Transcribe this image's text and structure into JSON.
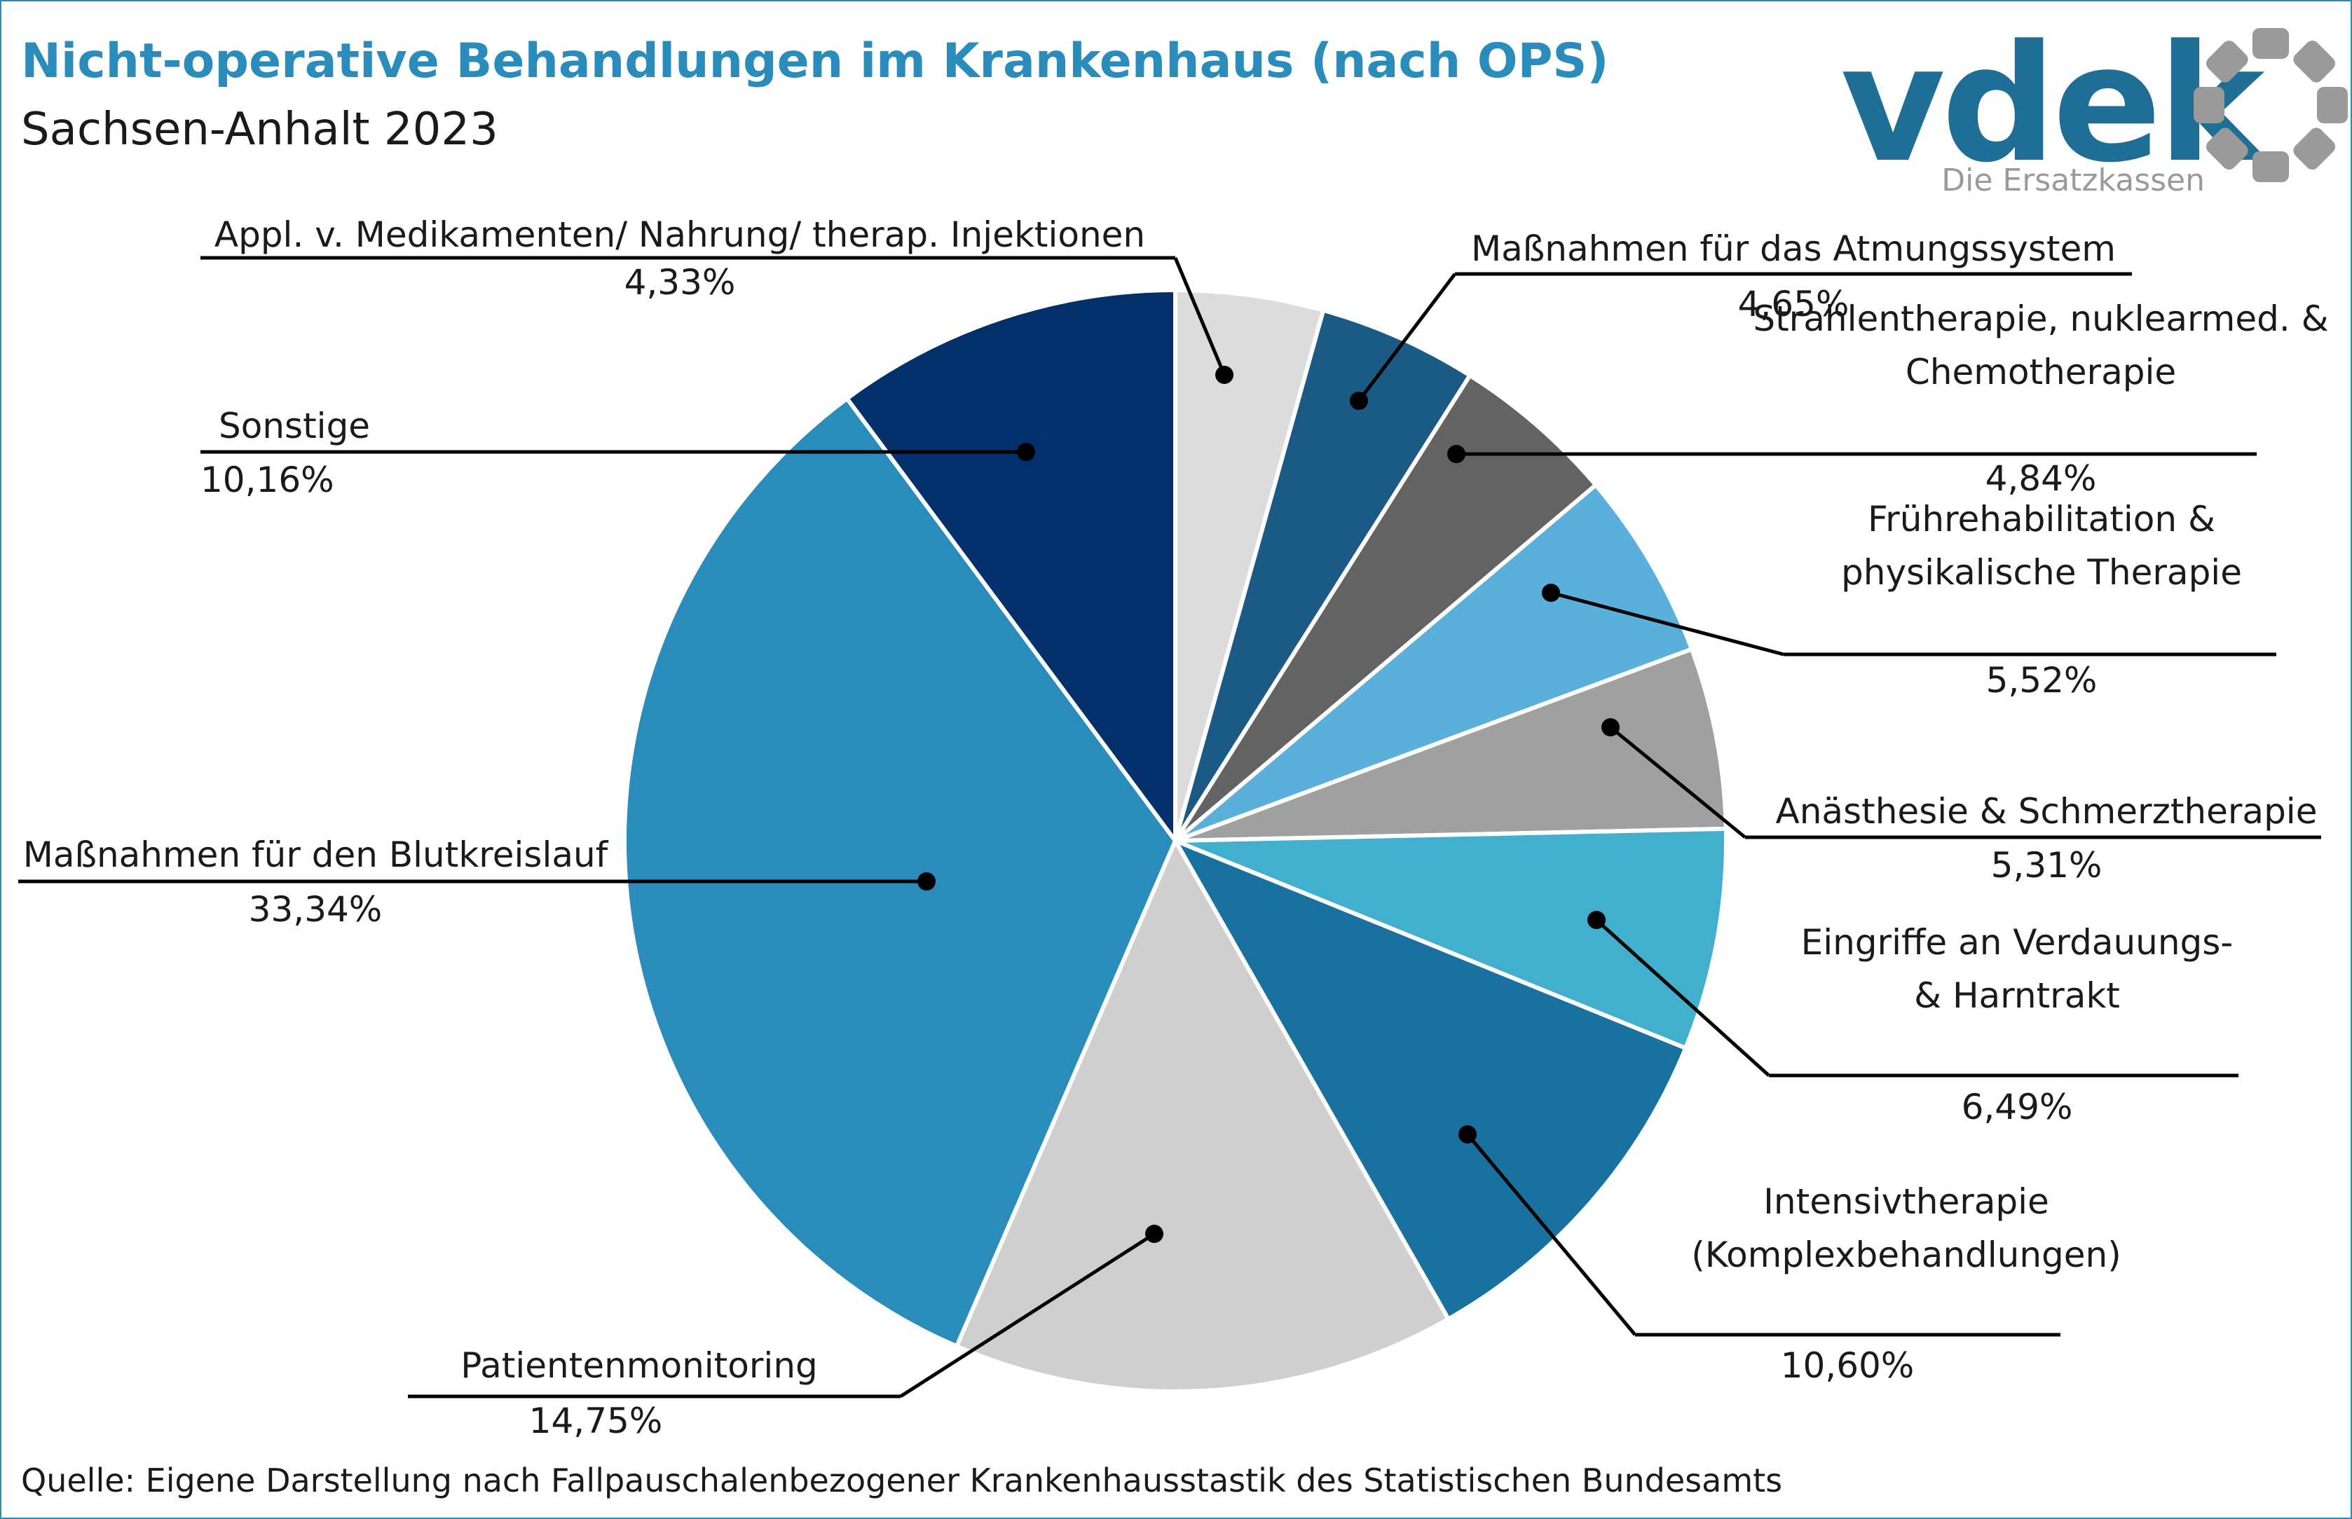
{
  "title": "Nicht-operative Behandlungen im Krankenhaus (nach OPS)",
  "subtitle": "Sachsen-Anhalt 2023",
  "source": "Quelle: Eigene Darstellung nach Fallpauschalenbezogener Krankenhausstastik des Statistischen Bundesamts",
  "logo": {
    "wordmark": "vdek",
    "tagline": "Die Ersatzkassen",
    "color": "#1f6e96",
    "ring_color": "#9a9a9a"
  },
  "colors": {
    "frame": "#2a8cbb",
    "title": "#2a8cbb"
  },
  "chart_data": {
    "type": "pie",
    "start_angle_deg": 0,
    "direction": "clockwise",
    "slices": [
      {
        "label": [
          "Appl. v. Medikamenten/ Nahrung/ therap. Injektionen"
        ],
        "value": 4.33,
        "value_label": "4,33%",
        "color": "#dcdcdc"
      },
      {
        "label": [
          "Maßnahmen für das Atmungssystem"
        ],
        "value": 4.65,
        "value_label": "4,65%",
        "color": "#1b5a85"
      },
      {
        "label": [
          "Strahlentherapie, nuklearmed. &",
          "Chemotherapie"
        ],
        "value": 4.84,
        "value_label": "4,84%",
        "color": "#636363"
      },
      {
        "label": [
          "Frührehabilitation &",
          "physikalische Therapie"
        ],
        "value": 5.52,
        "value_label": "5,52%",
        "color": "#5ab0db"
      },
      {
        "label": [
          "Anästhesie & Schmerztherapie"
        ],
        "value": 5.31,
        "value_label": "5,31%",
        "color": "#a0a0a0"
      },
      {
        "label": [
          "Eingriffe an Verdauungs-",
          "& Harntrakt"
        ],
        "value": 6.49,
        "value_label": "6,49%",
        "color": "#42b0cc"
      },
      {
        "label": [
          "Intensivtherapie",
          "(Komplexbehandlungen)"
        ],
        "value": 10.6,
        "value_label": "10,60%",
        "color": "#1971a0"
      },
      {
        "label": [
          "Patientenmonitoring"
        ],
        "value": 14.75,
        "value_label": "14,75%",
        "color": "#cfcfcf"
      },
      {
        "label": [
          "Maßnahmen für den Blutkreislauf"
        ],
        "value": 33.34,
        "value_label": "33,34%",
        "color": "#2a8cbb"
      },
      {
        "label": [
          "Sonstige"
        ],
        "value": 10.16,
        "value_label": "10,16%",
        "color": "#03306a"
      }
    ]
  }
}
